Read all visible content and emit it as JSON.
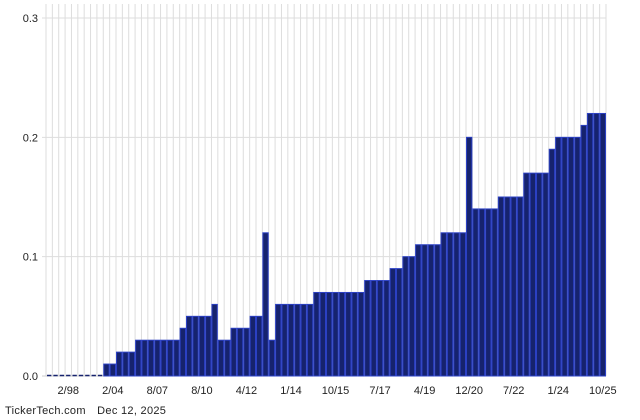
{
  "chart_data": {
    "type": "bar",
    "title": "",
    "xlabel": "",
    "ylabel": "",
    "ylim": [
      0,
      0.3
    ],
    "yticks": [
      "0.0",
      "0.1",
      "0.2",
      "0.3"
    ],
    "grid": true,
    "bar_color": "#16236e",
    "bar_edge_color": "#2b40c4",
    "grid_color": "#dddddd",
    "values": [
      0,
      0,
      0,
      0,
      0,
      0,
      0,
      0,
      0,
      0.01,
      0.01,
      0.02,
      0.02,
      0.02,
      0.03,
      0.03,
      0.03,
      0.03,
      0.03,
      0.03,
      0.03,
      0.04,
      0.05,
      0.05,
      0.05,
      0.05,
      0.06,
      0.03,
      0.03,
      0.04,
      0.04,
      0.04,
      0.05,
      0.05,
      0.12,
      0.03,
      0.06,
      0.06,
      0.06,
      0.06,
      0.06,
      0.06,
      0.07,
      0.07,
      0.07,
      0.07,
      0.07,
      0.07,
      0.07,
      0.07,
      0.08,
      0.08,
      0.08,
      0.08,
      0.09,
      0.09,
      0.1,
      0.1,
      0.11,
      0.11,
      0.11,
      0.11,
      0.12,
      0.12,
      0.12,
      0.12,
      0.2,
      0.14,
      0.14,
      0.14,
      0.14,
      0.15,
      0.15,
      0.15,
      0.15,
      0.17,
      0.17,
      0.17,
      0.17,
      0.19,
      0.2,
      0.2,
      0.2,
      0.2,
      0.21,
      0.22,
      0.22,
      0.22
    ],
    "xticks": [
      {
        "bar": 3,
        "label": "2/98"
      },
      {
        "bar": 10,
        "label": "2/04"
      },
      {
        "bar": 17,
        "label": "8/07"
      },
      {
        "bar": 24,
        "label": "8/10"
      },
      {
        "bar": 31,
        "label": "4/12"
      },
      {
        "bar": 38,
        "label": "1/14"
      },
      {
        "bar": 45,
        "label": "10/15"
      },
      {
        "bar": 52,
        "label": "7/17"
      },
      {
        "bar": 59,
        "label": "4/19"
      },
      {
        "bar": 66,
        "label": "12/20"
      },
      {
        "bar": 73,
        "label": "7/22"
      },
      {
        "bar": 80,
        "label": "1/24"
      },
      {
        "bar": 87,
        "label": "10/25"
      }
    ]
  },
  "footer": {
    "source": "TickerTech.com",
    "date": "Dec 12, 2025"
  }
}
